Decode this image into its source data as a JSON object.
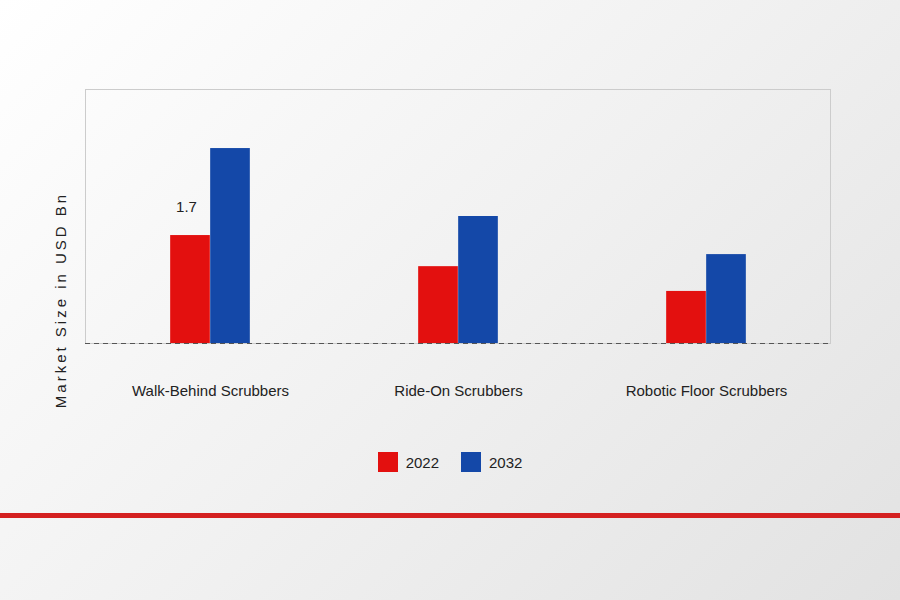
{
  "chart_data": {
    "type": "bar",
    "ylabel": "Market Size in USD Bn",
    "categories": [
      "Walk-Behind Scrubbers",
      "Ride-On Scrubbers",
      "Robotic Floor Scrubbers"
    ],
    "series": [
      {
        "name": "2022",
        "color": "#e3100f",
        "values": [
          1.7,
          1.21,
          0.82
        ],
        "value_labels": [
          "1.7",
          null,
          null
        ]
      },
      {
        "name": "2032",
        "color": "#1448a8",
        "values": [
          3.07,
          2.0,
          1.4
        ]
      }
    ],
    "ylim": [
      0,
      4
    ],
    "yticks": [],
    "tick_labels": "x",
    "legend": "bottom"
  }
}
